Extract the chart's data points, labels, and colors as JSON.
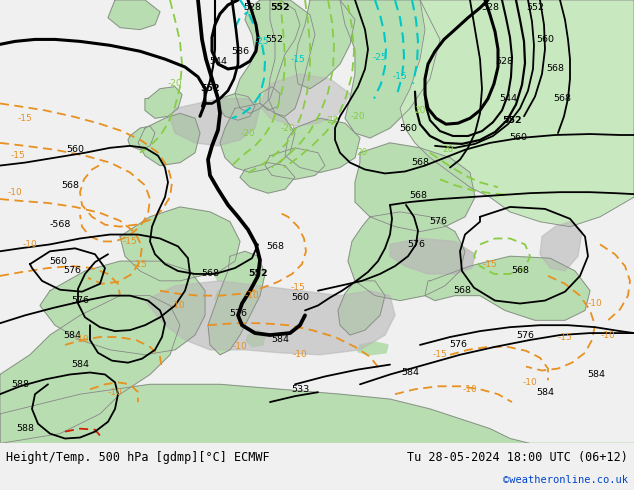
{
  "title_left": "Height/Temp. 500 hPa [gdmp][°C] ECMWF",
  "title_right": "Tu 28-05-2024 18:00 UTC (06+12)",
  "credit": "©weatheronline.co.uk",
  "figsize": [
    6.34,
    4.9
  ],
  "dpi": 100,
  "bg_color": "#f0f0f0",
  "land_green": "#b8ddb0",
  "land_green2": "#c8e8c0",
  "sea_gray": "#c8c8c8",
  "sea_light": "#d8d8d8",
  "border_color": "#909090",
  "bottom_bar": "#d8d8d8",
  "contour_black_thick": 2.2,
  "contour_black_thin": 1.3,
  "contour_color_cyan": "#00c8c8",
  "contour_color_green": "#88cc44",
  "contour_color_orange": "#e89020",
  "contour_color_red": "#cc2200",
  "label_fontsize": 6.8,
  "temp_label_fontsize": 6.5
}
